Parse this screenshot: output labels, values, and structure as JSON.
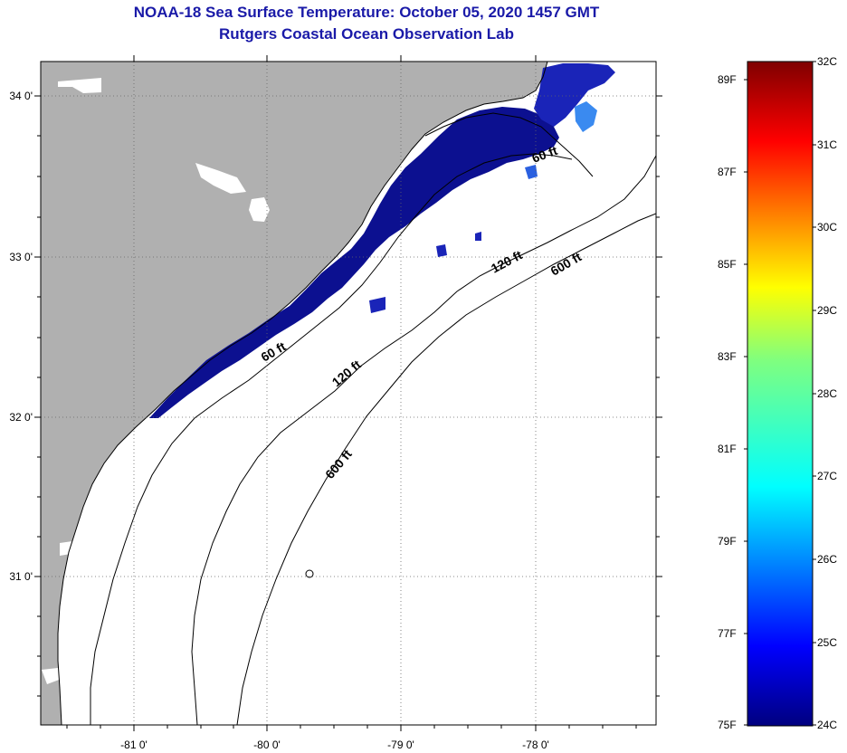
{
  "header": {
    "title": "NOAA-18 Sea Surface Temperature:  October 05, 2020 1457 GMT",
    "subtitle": "Rutgers Coastal Ocean Observation Lab"
  },
  "map": {
    "lat_labels": [
      "34 0'",
      "33 0'",
      "32 0'",
      "31 0'"
    ],
    "lon_labels": [
      "-81 0'",
      "-80 0'",
      "-79 0'",
      "-78 0'"
    ],
    "contour_labels": [
      "60 ft",
      "120 ft",
      "600 ft",
      "60 ft",
      "120 ft",
      "600 ft"
    ],
    "colors": {
      "land": "#b0b0b0",
      "sst_cold": "#0c1090",
      "sst_mid": "#1f35d8",
      "sst_light": "#3a8af0"
    }
  },
  "colorbar": {
    "fahrenheit_labels": [
      "89F",
      "87F",
      "85F",
      "83F",
      "81F",
      "79F",
      "77F",
      "75F"
    ],
    "celsius_labels": [
      "32C",
      "31C",
      "30C",
      "29C",
      "28C",
      "27C",
      "26C",
      "25C",
      "24C"
    ]
  }
}
